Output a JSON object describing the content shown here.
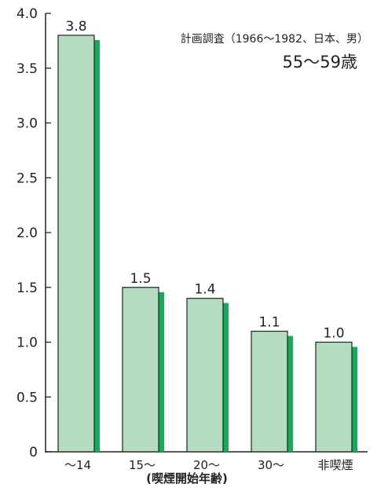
{
  "chart_data": {
    "type": "bar",
    "categories": [
      "〜14",
      "15〜",
      "20〜",
      "30〜",
      "非喫煙"
    ],
    "values": [
      3.8,
      1.5,
      1.4,
      1.1,
      1.0
    ],
    "value_labels": [
      "3.8",
      "1.5",
      "1.4",
      "1.1",
      "1.0"
    ],
    "xlabel": "(喫煙開始年齢)",
    "ylabel": "",
    "ylim": [
      0,
      4.0
    ],
    "yticks": [
      0,
      0.5,
      1.0,
      1.5,
      2.0,
      2.5,
      3.0,
      3.5,
      4.0
    ],
    "ytick_labels": [
      "0",
      "0.5",
      "1.0",
      "1.5",
      "2.0",
      "2.5",
      "3.0",
      "3.5",
      "4.0"
    ],
    "annotation": {
      "line1": "計画調査（1966〜1982、日本、男）",
      "line2": "55〜59歳"
    },
    "grid": false,
    "legend": "none",
    "colors": {
      "bar_fill": "#b5dcc0",
      "bar_shadow": "#1aa85a",
      "axis": "#222222",
      "text": "#222222"
    }
  }
}
